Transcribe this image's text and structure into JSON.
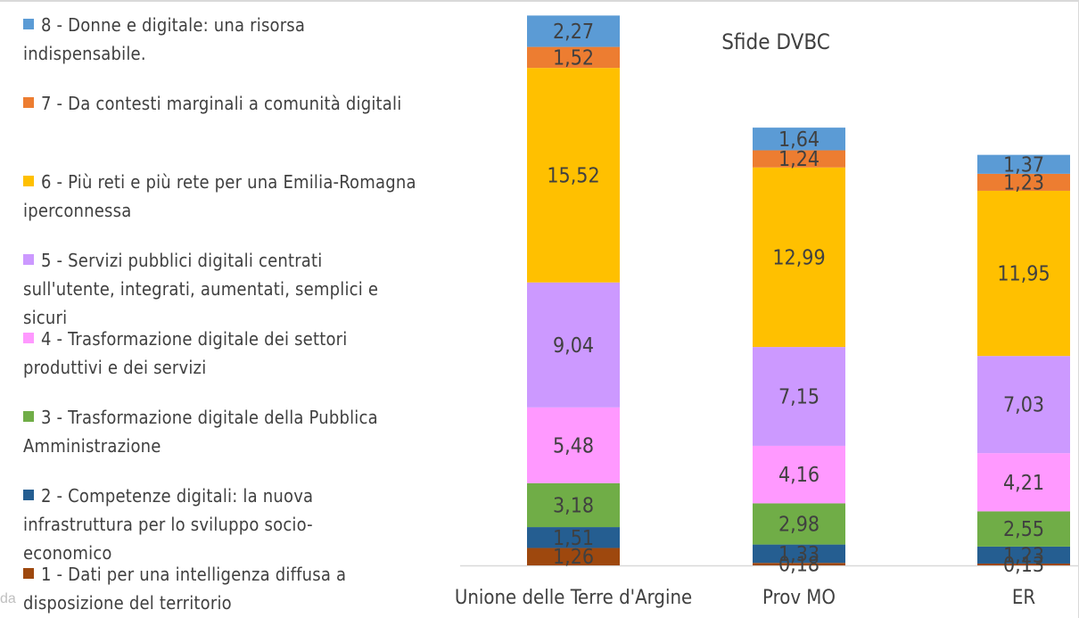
{
  "chart_data": {
    "type": "bar",
    "stacked": true,
    "title": "Sfide DVBC",
    "categories": [
      "Unione delle Terre d'Argine",
      "Prov MO",
      "ER"
    ],
    "series": [
      {
        "name": "1 - Dati per una intelligenza diffusa a disposizione del territorio",
        "color": "#9E480E",
        "values": [
          1.26,
          0.18,
          0.13
        ],
        "labels": [
          "1,26",
          "0,18",
          "0,13"
        ]
      },
      {
        "name": "2 - Competenze digitali: la nuova infrastruttura per lo sviluppo socio-economico",
        "color": "#255E91",
        "values": [
          1.51,
          1.33,
          1.23
        ],
        "labels": [
          "1,51",
          "1,33",
          "1,23"
        ]
      },
      {
        "name": "3 - Trasformazione digitale della Pubblica Amministrazione",
        "color": "#70AD47",
        "values": [
          3.18,
          2.98,
          2.55
        ],
        "labels": [
          "3,18",
          "2,98",
          "2,55"
        ]
      },
      {
        "name": "4 - Trasformazione digitale dei settori produttivi e dei servizi",
        "color": "#FF99FF",
        "values": [
          5.48,
          4.16,
          4.21
        ],
        "labels": [
          "5,48",
          "4,16",
          "4,21"
        ]
      },
      {
        "name": "5 - Servizi pubblici digitali centrati sull'utente, integrati, aumentati, semplici e sicuri",
        "color": "#CC99FF",
        "values": [
          9.04,
          7.15,
          7.03
        ],
        "labels": [
          "9,04",
          "7,15",
          "7,03"
        ]
      },
      {
        "name": "6 - Più reti e più rete per una Emilia-Romagna iperconnessa",
        "color": "#FFC000",
        "values": [
          15.52,
          12.99,
          11.95
        ],
        "labels": [
          "15,52",
          "12,99",
          "11,95"
        ]
      },
      {
        "name": "7 - Da contesti marginali a comunità digitali",
        "color": "#ED7D31",
        "values": [
          1.52,
          1.24,
          1.23
        ],
        "labels": [
          "1,52",
          "1,24",
          "1,23"
        ]
      },
      {
        "name": "8 - Donne e digitale: una risorsa indispensabile.",
        "color": "#5B9BD5",
        "values": [
          2.27,
          1.64,
          1.37
        ],
        "labels": [
          "2,27",
          "1,64",
          "1,37"
        ]
      }
    ],
    "legend_position": "left",
    "grid": false
  },
  "legend": [
    {
      "line1": "8 - Donne e digitale: una risorsa",
      "line2": "indispensabile.",
      "color": "#5B9BD5"
    },
    {
      "line1": "7 - Da contesti marginali a comunità digitali",
      "line2": "",
      "color": "#ED7D31"
    },
    {
      "line1": "6 - Più reti e più rete per una Emilia-Romagna",
      "line2": "iperconnessa",
      "color": "#FFC000"
    },
    {
      "line1": "5 - Servizi pubblici digitali centrati",
      "line2": "sull'utente, integrati, aumentati, semplici e",
      "line3": "sicuri",
      "color": "#CC99FF"
    },
    {
      "line1": "4 - Trasformazione digitale dei settori",
      "line2": "produttivi e dei servizi",
      "color": "#FF99FF"
    },
    {
      "line1": "3 - Trasformazione digitale della Pubblica",
      "line2": "Amministrazione",
      "color": "#70AD47"
    },
    {
      "line1": "2 - Competenze digitali: la nuova",
      "line2": "infrastruttura per lo sviluppo socio-",
      "line3": "economico",
      "color": "#255E91"
    },
    {
      "line1": "1 - Dati per una intelligenza diffusa a",
      "line2": "disposizione del territorio",
      "color": "#9E480E"
    }
  ],
  "corner_text": "da"
}
